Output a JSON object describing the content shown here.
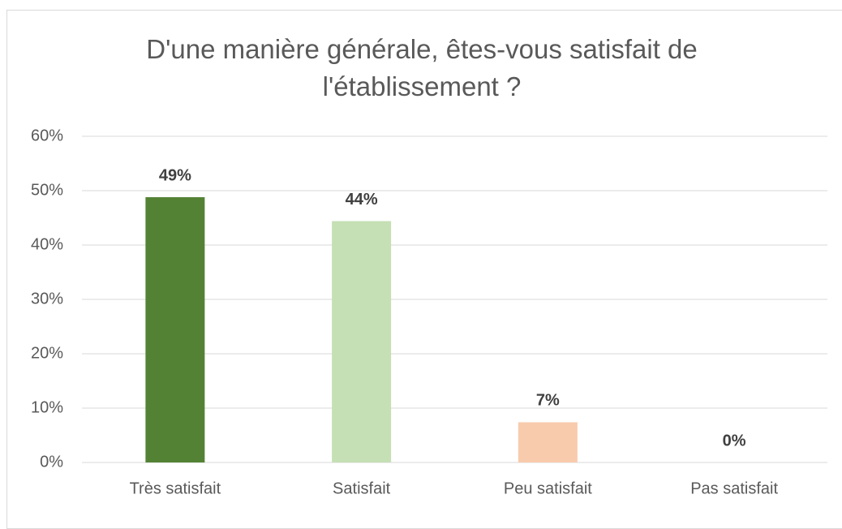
{
  "chart_data": {
    "type": "bar",
    "title": "D'une manière générale, êtes-vous satisfait de l'établissement ?",
    "categories": [
      "Très satisfait",
      "Satisfait",
      "Peu satisfait",
      "Pas satisfait"
    ],
    "values": [
      48.8,
      44.4,
      7.4,
      0
    ],
    "value_labels": [
      "49%",
      "44%",
      "7%",
      "0%"
    ],
    "colors": [
      "#548235",
      "#c5e0b4",
      "#f8cbad"
    ],
    "ylim": [
      0,
      60
    ],
    "yticks": [
      {
        "value": 0,
        "label": "0%"
      },
      {
        "value": 10,
        "label": "10%"
      },
      {
        "value": 20,
        "label": "20%"
      },
      {
        "value": 30,
        "label": "30%"
      },
      {
        "value": 40,
        "label": "40%"
      },
      {
        "value": 50,
        "label": "50%"
      },
      {
        "value": 60,
        "label": "60%"
      }
    ],
    "grid": true
  }
}
